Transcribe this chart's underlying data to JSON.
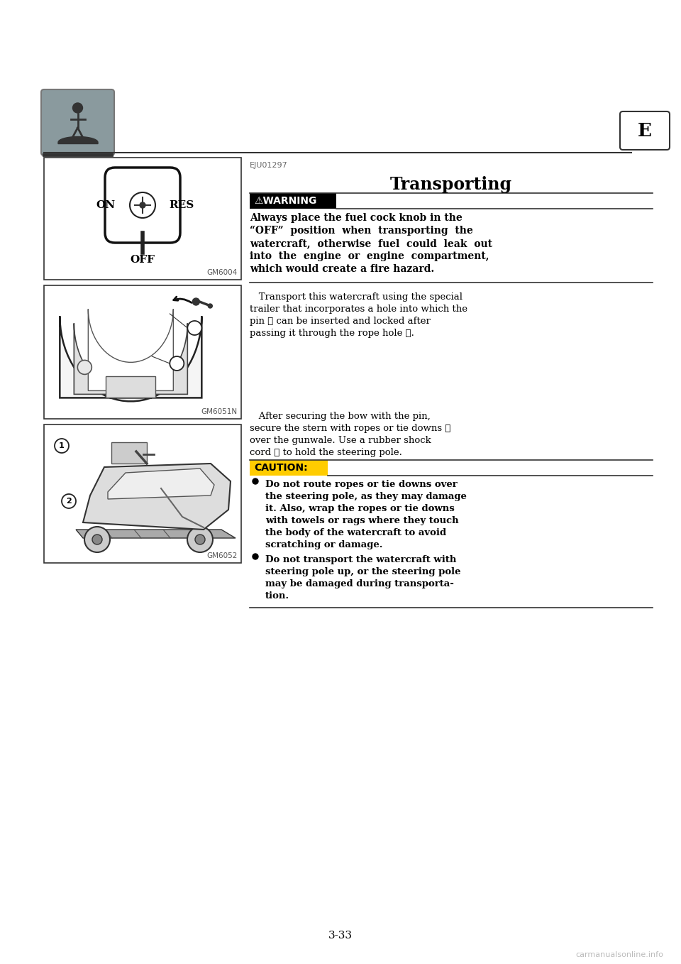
{
  "page_number": "3-33",
  "tab_letter": "E",
  "section_code": "EJU01297",
  "section_title": "Transporting",
  "warning_label": "⚠WARNING",
  "warning_text_line1": "Always place the fuel cock knob in the",
  "warning_text_line2": "“OFF”  position  when  transporting  the",
  "warning_text_line3": "watercraft,  otherwise  fuel  could  leak  out",
  "warning_text_line4": "into  the  engine  or  engine  compartment,",
  "warning_text_line5": "which would create a fire hazard.",
  "para1_indent": "   Transport this watercraft using the special",
  "para1_line2": "trailer that incorporates a hole into which the",
  "para1_line3": "pin ① can be inserted and locked after",
  "para1_line4": "passing it through the rope hole ②.",
  "para2_indent": "   After securing the bow with the pin,",
  "para2_line2": "secure the stern with ropes or tie downs ②",
  "para2_line3": "over the gunwale. Use a rubber shock",
  "para2_line4": "cord ① to hold the steering pole.",
  "caution_label": "CAUTION:",
  "caution1_line1": "Do not route ropes or tie downs over",
  "caution1_line2": "the steering pole, as they may damage",
  "caution1_line3": "it. Also, wrap the ropes or tie downs",
  "caution1_line4": "with towels or rags where they touch",
  "caution1_line5": "the body of the watercraft to avoid",
  "caution1_line6": "scratching or damage.",
  "caution2_line1": "Do not transport the watercraft with",
  "caution2_line2": "steering pole up, or the steering pole",
  "caution2_line3": "may be damaged during transporta-",
  "caution2_line4": "tion.",
  "img1_label": "GM6004",
  "img2_label": "GM6051N",
  "img3_label": "GM6052",
  "watermark": "carmanualsonline.info",
  "bg_color": "#ffffff",
  "text_color": "#000000",
  "warning_bg": "#000000",
  "warning_fg": "#ffffff",
  "caution_bg": "#ffcc00",
  "gray_icon_bg": "#8a9a9e"
}
